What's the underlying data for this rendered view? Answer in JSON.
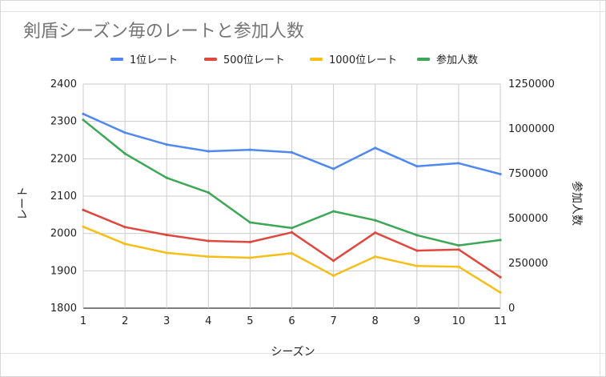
{
  "chart_data": {
    "type": "line",
    "title": "剣盾シーズン毎のレートと参加人数",
    "xlabel": "シーズン",
    "ylabel": "レート",
    "y2label": "参加人数",
    "categories": [
      "1",
      "2",
      "3",
      "4",
      "5",
      "6",
      "7",
      "8",
      "9",
      "10",
      "11"
    ],
    "ylim": [
      1800,
      2400
    ],
    "y2lim": [
      0,
      1250000
    ],
    "y_ticks": [
      "1800",
      "1900",
      "2000",
      "2100",
      "2200",
      "2300",
      "2400"
    ],
    "y2_ticks": [
      "0",
      "250000",
      "500000",
      "750000",
      "1000000",
      "1250000"
    ],
    "legend_position": "top",
    "grid": true,
    "series": [
      {
        "name": "1位レート",
        "axis": "left",
        "color": "#4f88f2",
        "values": [
          2320,
          2270,
          2238,
          2220,
          2224,
          2217,
          2173,
          2229,
          2180,
          2188,
          2159
        ]
      },
      {
        "name": "500位レート",
        "axis": "left",
        "color": "#e0483f",
        "values": [
          2063,
          2017,
          1996,
          1980,
          1977,
          2003,
          1927,
          2002,
          1954,
          1957,
          1883
        ]
      },
      {
        "name": "1000位レート",
        "axis": "left",
        "color": "#f7be18",
        "values": [
          2018,
          1972,
          1948,
          1938,
          1935,
          1947,
          1887,
          1938,
          1913,
          1911,
          1842
        ]
      },
      {
        "name": "参加人数",
        "axis": "right",
        "color": "#3ca755",
        "values": [
          1050000,
          862000,
          727000,
          645000,
          478000,
          447000,
          540000,
          490000,
          407000,
          350000,
          380000
        ]
      }
    ]
  }
}
